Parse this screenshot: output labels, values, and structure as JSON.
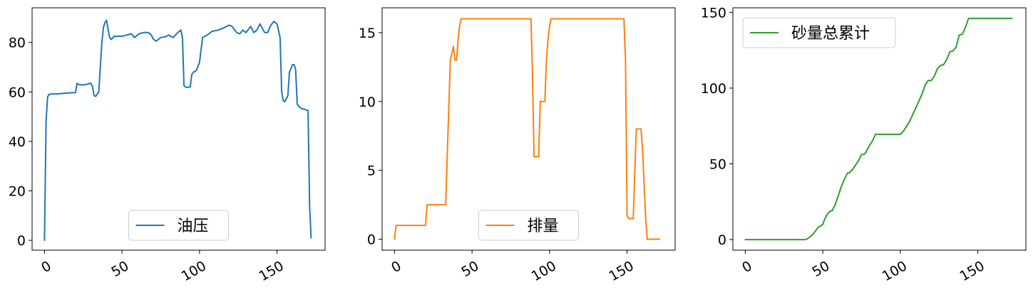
{
  "chart_data": [
    {
      "type": "line",
      "legend": "油压",
      "legend_position": "lower-center",
      "color": "#1f77b4",
      "xlim": [
        -8,
        181
      ],
      "ylim": [
        -4,
        94
      ],
      "xticks": [
        0,
        50,
        100,
        150
      ],
      "yticks": [
        0,
        20,
        40,
        60,
        80
      ],
      "x": [
        0,
        1,
        2,
        3,
        5,
        8,
        10,
        12,
        15,
        20,
        21,
        22,
        25,
        30,
        31,
        32,
        33,
        35,
        36,
        37,
        38,
        39,
        40,
        42,
        43,
        45,
        48,
        50,
        53,
        56,
        58,
        61,
        64,
        67,
        69,
        70,
        72,
        75,
        78,
        80,
        83,
        86,
        87,
        88,
        89,
        90,
        91,
        92,
        94,
        95,
        96,
        97,
        98,
        100,
        102,
        105,
        108,
        112,
        116,
        119,
        121,
        124,
        126,
        128,
        130,
        133,
        135,
        137,
        139,
        142,
        144,
        146,
        148,
        150,
        152,
        153,
        154,
        155,
        157,
        158,
        160,
        161,
        162,
        163,
        165,
        170,
        171,
        172
      ],
      "values": [
        0,
        48,
        58,
        59,
        59.2,
        59.2,
        59.3,
        59.4,
        59.6,
        59.7,
        63.5,
        63,
        62.8,
        63.5,
        62,
        58.5,
        58.2,
        60,
        70,
        80,
        86,
        88,
        89,
        82,
        81.2,
        82.5,
        82.5,
        82.5,
        83,
        83.5,
        82,
        83.5,
        84,
        84,
        83,
        81.5,
        80.5,
        82,
        82.3,
        83,
        82,
        84,
        84.5,
        85,
        82,
        62.5,
        62,
        61.8,
        62,
        67,
        68,
        68.2,
        68.7,
        72,
        82,
        83,
        84.5,
        85,
        86,
        87,
        86.5,
        84,
        83.5,
        85,
        84,
        86.5,
        84,
        85,
        87.5,
        84,
        84,
        87,
        88.5,
        87.5,
        82,
        60,
        56.5,
        56,
        58.5,
        68,
        71,
        71,
        69,
        55,
        53.5,
        52.5,
        14,
        1
      ],
      "title": "",
      "xlabel": "",
      "ylabel": ""
    },
    {
      "type": "line",
      "legend": "排量",
      "legend_position": "lower-center",
      "color": "#ff7f0e",
      "xlim": [
        -8,
        181
      ],
      "ylim": [
        -0.8,
        16.8
      ],
      "xticks": [
        0,
        50,
        100,
        150
      ],
      "yticks": [
        0,
        5,
        10,
        15
      ],
      "x": [
        0,
        1,
        2,
        20,
        21,
        22,
        33,
        34,
        36,
        38,
        39,
        40,
        41,
        42,
        43,
        44,
        88,
        89,
        90,
        91,
        92,
        93,
        94,
        96,
        97,
        98,
        99,
        100,
        101,
        102,
        148,
        149,
        150,
        151,
        152,
        154,
        155,
        156,
        158,
        159,
        160,
        162,
        163,
        171
      ],
      "values": [
        0,
        1,
        1,
        1,
        2.5,
        2.5,
        2.5,
        6,
        13,
        14,
        13,
        13,
        14.5,
        15.5,
        16,
        16,
        16,
        12,
        6,
        6,
        6,
        6,
        10,
        10,
        10,
        13,
        14.5,
        15.5,
        16,
        16,
        16,
        13,
        1.7,
        1.5,
        1.5,
        1.5,
        5,
        8,
        8,
        8,
        6.5,
        1.5,
        0,
        0
      ],
      "title": "",
      "xlabel": "",
      "ylabel": ""
    },
    {
      "type": "line",
      "legend": "砂量总累计",
      "legend_position": "top-left",
      "color": "#2ca02c",
      "xlim": [
        -8,
        181
      ],
      "ylim": [
        -7,
        153
      ],
      "xticks": [
        0,
        50,
        100,
        150
      ],
      "yticks": [
        0,
        50,
        100,
        150
      ],
      "x": [
        0,
        39,
        40,
        42,
        44,
        47,
        50,
        51,
        52,
        53,
        55,
        56,
        58,
        60,
        62,
        64,
        66,
        67,
        69,
        71,
        73,
        75,
        77,
        78,
        80,
        82,
        84,
        88,
        94,
        100,
        102,
        106,
        110,
        114,
        116,
        118,
        120,
        122,
        124,
        126,
        128,
        130,
        132,
        134,
        136,
        138,
        140,
        142,
        144,
        146,
        148,
        172
      ],
      "values": [
        0,
        0,
        0.5,
        2,
        4,
        8,
        10,
        13,
        15,
        17,
        19,
        19,
        23,
        29,
        35,
        40,
        44,
        44,
        46,
        49,
        52,
        56,
        56.5,
        58,
        62,
        65,
        69.5,
        69.5,
        69.5,
        69.5,
        71.5,
        78,
        87,
        96,
        102,
        105,
        105,
        108,
        113,
        115,
        115.5,
        119,
        124,
        124.5,
        127,
        135,
        135.5,
        140,
        146,
        146,
        146,
        146
      ],
      "title": "",
      "xlabel": "",
      "ylabel": ""
    }
  ]
}
